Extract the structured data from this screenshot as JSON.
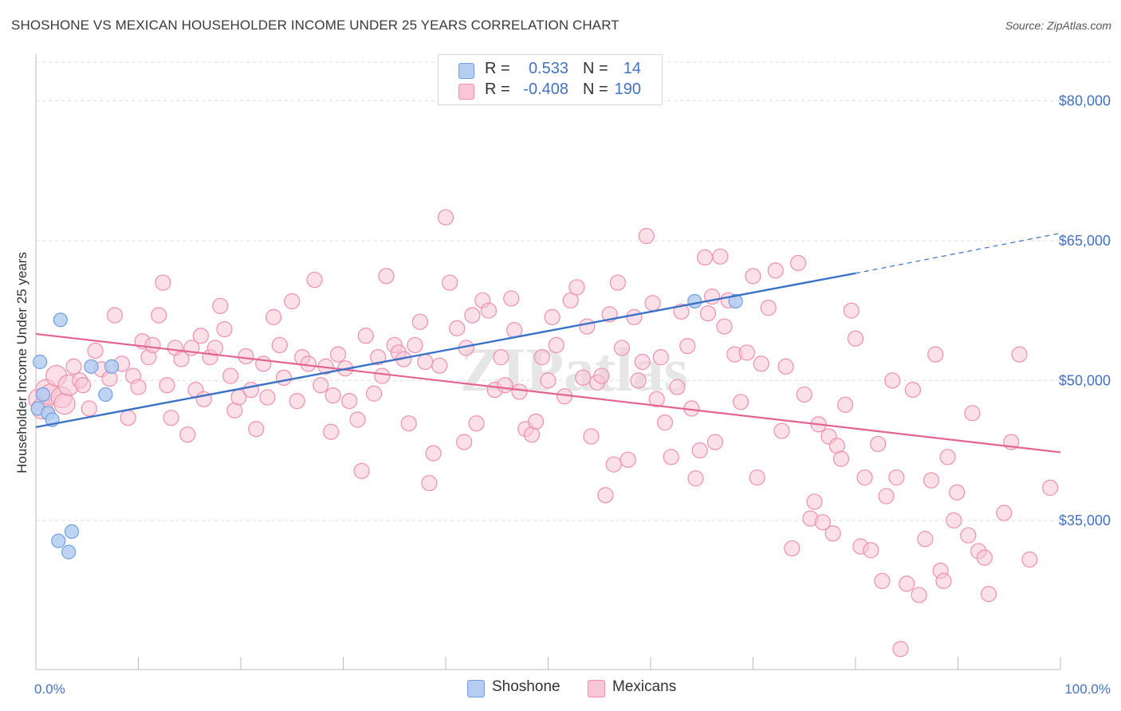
{
  "title": "SHOSHONE VS MEXICAN HOUSEHOLDER INCOME UNDER 25 YEARS CORRELATION CHART",
  "source": "Source: ZipAtlas.com",
  "watermark": "ZIPatlas",
  "legend": {
    "rows": [
      {
        "r_label": "R =",
        "r_value": "0.533",
        "n_label": "N =",
        "n_value": "14"
      },
      {
        "r_label": "R =",
        "r_value": "-0.408",
        "n_label": "N =",
        "n_value": "190"
      }
    ]
  },
  "bottom_legend": {
    "shoshone": "Shoshone",
    "mexicans": "Mexicans"
  },
  "colors": {
    "shoshone_fill": "#b4cdf0",
    "shoshone_stroke": "#6f9fe0",
    "shoshone_line": "#3a72c8",
    "mexicans_fill": "#f8c6d6",
    "mexicans_stroke": "#ee8fae",
    "mexicans_line": "#e3648f",
    "tick_text": "#4472c4",
    "grid": "#dcdcdc"
  },
  "chart_data": {
    "type": "scatter",
    "title": "SHOSHONE VS MEXICAN HOUSEHOLDER INCOME UNDER 25 YEARS CORRELATION CHART",
    "xlabel": "",
    "ylabel": "Householder Income Under 25 years",
    "xlim": [
      0,
      100
    ],
    "ylim": [
      19000,
      85000
    ],
    "x_tick_labels": [
      "0.0%",
      "100.0%"
    ],
    "y_ticks": [
      35000,
      50000,
      65000,
      80000
    ],
    "y_tick_labels": [
      "$35,000",
      "$50,000",
      "$65,000",
      "$80,000"
    ],
    "grid": true,
    "legend_position": "top-center",
    "series": [
      {
        "name": "Shoshone",
        "r": 0.533,
        "n": 14,
        "trend": {
          "x0": 0,
          "y0": 45000,
          "x1": 80,
          "y1": 61500,
          "dashed_to_x": 100,
          "dashed_to_y": 65800
        },
        "points": [
          [
            0.2,
            47000
          ],
          [
            0.4,
            52000
          ],
          [
            0.7,
            48500
          ],
          [
            1.2,
            46500
          ],
          [
            1.6,
            45800
          ],
          [
            2.4,
            56500
          ],
          [
            5.4,
            51500
          ],
          [
            6.8,
            48500
          ],
          [
            7.4,
            51500
          ],
          [
            2.2,
            32800
          ],
          [
            3.2,
            31600
          ],
          [
            3.5,
            33800
          ],
          [
            64.3,
            58500
          ],
          [
            68.3,
            58500
          ]
        ]
      },
      {
        "name": "Mexicans",
        "r": -0.408,
        "n": 190,
        "trend": {
          "x0": 0,
          "y0": 55000,
          "x1": 100,
          "y1": 42300
        },
        "points": [
          [
            0.3,
            48000
          ],
          [
            0.6,
            47000
          ],
          [
            1.0,
            49000
          ],
          [
            1.4,
            48500
          ],
          [
            2.0,
            50500
          ],
          [
            2.5,
            48200
          ],
          [
            2.8,
            47500
          ],
          [
            3.2,
            49500
          ],
          [
            3.7,
            51500
          ],
          [
            4.3,
            50000
          ],
          [
            4.6,
            49500
          ],
          [
            5.2,
            47000
          ],
          [
            5.8,
            53200
          ],
          [
            6.4,
            51200
          ],
          [
            7.2,
            50200
          ],
          [
            7.7,
            57000
          ],
          [
            8.4,
            51800
          ],
          [
            9.0,
            46000
          ],
          [
            9.5,
            50500
          ],
          [
            10.0,
            49300
          ],
          [
            10.4,
            54200
          ],
          [
            11.0,
            52500
          ],
          [
            11.4,
            53800
          ],
          [
            12.0,
            57000
          ],
          [
            12.4,
            60500
          ],
          [
            12.8,
            49500
          ],
          [
            13.2,
            46000
          ],
          [
            13.6,
            53500
          ],
          [
            14.2,
            52300
          ],
          [
            14.8,
            44200
          ],
          [
            15.2,
            53500
          ],
          [
            15.6,
            49000
          ],
          [
            16.1,
            54800
          ],
          [
            16.4,
            48000
          ],
          [
            17.0,
            52500
          ],
          [
            17.5,
            53500
          ],
          [
            18.0,
            58000
          ],
          [
            18.4,
            55500
          ],
          [
            19.0,
            50500
          ],
          [
            19.4,
            46800
          ],
          [
            19.8,
            48200
          ],
          [
            20.5,
            52600
          ],
          [
            21.0,
            49000
          ],
          [
            21.5,
            44800
          ],
          [
            22.2,
            51800
          ],
          [
            22.6,
            48200
          ],
          [
            23.2,
            56800
          ],
          [
            23.8,
            53800
          ],
          [
            24.2,
            50300
          ],
          [
            25.0,
            58500
          ],
          [
            25.5,
            47800
          ],
          [
            26.0,
            52500
          ],
          [
            26.6,
            51800
          ],
          [
            27.2,
            60800
          ],
          [
            27.8,
            49500
          ],
          [
            28.3,
            51500
          ],
          [
            28.8,
            44500
          ],
          [
            29.0,
            48400
          ],
          [
            29.5,
            52800
          ],
          [
            30.2,
            51300
          ],
          [
            30.6,
            47800
          ],
          [
            31.4,
            45800
          ],
          [
            31.8,
            40300
          ],
          [
            32.2,
            54800
          ],
          [
            33.0,
            48600
          ],
          [
            33.4,
            52500
          ],
          [
            33.8,
            50500
          ],
          [
            34.2,
            61200
          ],
          [
            35.0,
            53800
          ],
          [
            35.4,
            53000
          ],
          [
            35.9,
            52300
          ],
          [
            36.4,
            45400
          ],
          [
            37.0,
            53800
          ],
          [
            37.5,
            56300
          ],
          [
            38.0,
            52000
          ],
          [
            38.4,
            39000
          ],
          [
            38.8,
            42200
          ],
          [
            39.4,
            51600
          ],
          [
            40.0,
            67500
          ],
          [
            40.4,
            60500
          ],
          [
            41.1,
            55600
          ],
          [
            41.8,
            43400
          ],
          [
            42.0,
            53500
          ],
          [
            42.6,
            57000
          ],
          [
            43.0,
            45400
          ],
          [
            43.6,
            58600
          ],
          [
            44.2,
            57500
          ],
          [
            44.8,
            49000
          ],
          [
            45.4,
            52500
          ],
          [
            45.8,
            49500
          ],
          [
            46.4,
            58800
          ],
          [
            46.7,
            55400
          ],
          [
            47.2,
            48800
          ],
          [
            47.8,
            44800
          ],
          [
            48.4,
            44200
          ],
          [
            48.8,
            45600
          ],
          [
            49.4,
            52500
          ],
          [
            50.0,
            50000
          ],
          [
            50.4,
            56800
          ],
          [
            50.8,
            53800
          ],
          [
            51.6,
            48300
          ],
          [
            52.2,
            58600
          ],
          [
            52.8,
            60000
          ],
          [
            53.4,
            50300
          ],
          [
            53.8,
            55800
          ],
          [
            54.2,
            44000
          ],
          [
            54.8,
            49800
          ],
          [
            55.2,
            50500
          ],
          [
            55.6,
            37700
          ],
          [
            56.0,
            57100
          ],
          [
            56.4,
            41000
          ],
          [
            56.8,
            60500
          ],
          [
            57.2,
            53500
          ],
          [
            57.8,
            41500
          ],
          [
            58.4,
            56800
          ],
          [
            58.8,
            50000
          ],
          [
            59.2,
            52000
          ],
          [
            59.6,
            65500
          ],
          [
            60.2,
            58300
          ],
          [
            60.6,
            48000
          ],
          [
            61.0,
            52500
          ],
          [
            61.4,
            45500
          ],
          [
            62.0,
            41800
          ],
          [
            62.6,
            49300
          ],
          [
            63.0,
            57400
          ],
          [
            63.6,
            53700
          ],
          [
            64.0,
            47000
          ],
          [
            64.4,
            39500
          ],
          [
            64.8,
            42500
          ],
          [
            65.3,
            63200
          ],
          [
            65.6,
            57200
          ],
          [
            66.0,
            59000
          ],
          [
            66.3,
            43400
          ],
          [
            66.8,
            63300
          ],
          [
            67.2,
            55800
          ],
          [
            67.6,
            58600
          ],
          [
            68.2,
            52800
          ],
          [
            68.8,
            47700
          ],
          [
            69.4,
            53000
          ],
          [
            70.0,
            61200
          ],
          [
            70.4,
            39600
          ],
          [
            70.8,
            51800
          ],
          [
            71.5,
            57800
          ],
          [
            72.2,
            61800
          ],
          [
            72.8,
            44600
          ],
          [
            73.2,
            51500
          ],
          [
            73.8,
            32000
          ],
          [
            74.4,
            62600
          ],
          [
            75.0,
            48500
          ],
          [
            75.6,
            35200
          ],
          [
            76.0,
            37000
          ],
          [
            76.4,
            45300
          ],
          [
            76.8,
            34800
          ],
          [
            77.4,
            44000
          ],
          [
            77.8,
            33600
          ],
          [
            78.2,
            43000
          ],
          [
            78.6,
            41600
          ],
          [
            79.0,
            47400
          ],
          [
            79.6,
            57500
          ],
          [
            80.0,
            54500
          ],
          [
            80.5,
            32200
          ],
          [
            80.9,
            39600
          ],
          [
            81.5,
            31800
          ],
          [
            82.2,
            43200
          ],
          [
            82.6,
            28500
          ],
          [
            83.0,
            37600
          ],
          [
            83.6,
            50000
          ],
          [
            84.0,
            39600
          ],
          [
            84.4,
            21200
          ],
          [
            85.0,
            28200
          ],
          [
            85.6,
            49000
          ],
          [
            86.2,
            27000
          ],
          [
            86.8,
            33000
          ],
          [
            87.4,
            39300
          ],
          [
            87.8,
            52800
          ],
          [
            88.3,
            29600
          ],
          [
            88.6,
            28500
          ],
          [
            89.0,
            41800
          ],
          [
            89.6,
            35000
          ],
          [
            89.9,
            38000
          ],
          [
            91.0,
            33400
          ],
          [
            91.4,
            46500
          ],
          [
            92.0,
            31700
          ],
          [
            92.6,
            31000
          ],
          [
            93.0,
            27100
          ],
          [
            94.5,
            35800
          ],
          [
            95.2,
            43400
          ],
          [
            96.0,
            52800
          ],
          [
            97.0,
            30800
          ],
          [
            99.0,
            38500
          ]
        ]
      }
    ]
  }
}
